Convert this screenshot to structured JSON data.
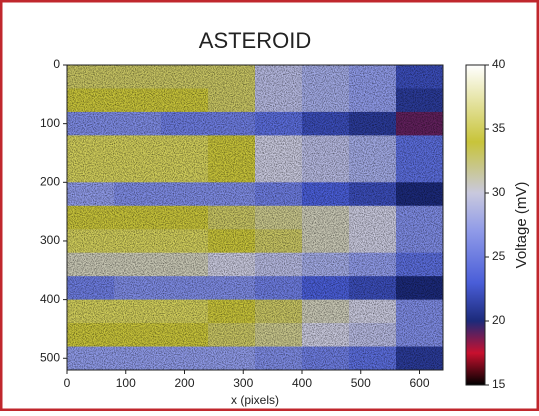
{
  "chart_data": {
    "type": "heatmap",
    "title": "ASTEROID",
    "xlabel": "x (pixels)",
    "colorbar_label": "Voltage (mV)",
    "x": [
      0,
      80,
      160,
      240,
      320,
      400,
      480,
      560,
      640
    ],
    "y": [
      0,
      40,
      80,
      120,
      160,
      200,
      240,
      280,
      320,
      360,
      400,
      440,
      480,
      520
    ],
    "z": [
      [
        33,
        33,
        33,
        33,
        29,
        28,
        27,
        22
      ],
      [
        34,
        34,
        34,
        33,
        29,
        28,
        27,
        21
      ],
      [
        26,
        26,
        25,
        25,
        24,
        22,
        21,
        19
      ],
      [
        35,
        35,
        35,
        34,
        30,
        29,
        28,
        24
      ],
      [
        35,
        35,
        35,
        34,
        30,
        29,
        28,
        24
      ],
      [
        27,
        26,
        26,
        26,
        25,
        23,
        22,
        20
      ],
      [
        34,
        34,
        34,
        33,
        32,
        31,
        30,
        26
      ],
      [
        35,
        35,
        35,
        34,
        33,
        31,
        30,
        26
      ],
      [
        31,
        31,
        31,
        30,
        29,
        28,
        27,
        24
      ],
      [
        25,
        26,
        26,
        26,
        25,
        23,
        22,
        20
      ],
      [
        35,
        35,
        35,
        34,
        33,
        31,
        30,
        26
      ],
      [
        34,
        34,
        34,
        33,
        32,
        30,
        29,
        26
      ],
      [
        27,
        27,
        27,
        27,
        26,
        25,
        24,
        21
      ]
    ],
    "xlim": [
      0,
      640
    ],
    "xticks": [
      0,
      100,
      200,
      300,
      400,
      500,
      600
    ],
    "ylim": [
      0,
      520
    ],
    "yticks": [
      0,
      100,
      200,
      300,
      400,
      500
    ],
    "y_inverted": true,
    "zlim": [
      15,
      40
    ],
    "zticks": [
      15,
      20,
      25,
      30,
      35,
      40
    ],
    "colormap": [
      {
        "value": 15,
        "color": "#000000"
      },
      {
        "value": 17.5,
        "color": "#c8102e"
      },
      {
        "value": 20,
        "color": "#1c2a7a"
      },
      {
        "value": 23,
        "color": "#4a5ed8"
      },
      {
        "value": 27,
        "color": "#8f9ae8"
      },
      {
        "value": 30,
        "color": "#c9c9de"
      },
      {
        "value": 34,
        "color": "#c8c43a"
      },
      {
        "value": 40,
        "color": "#ffffff"
      }
    ]
  }
}
